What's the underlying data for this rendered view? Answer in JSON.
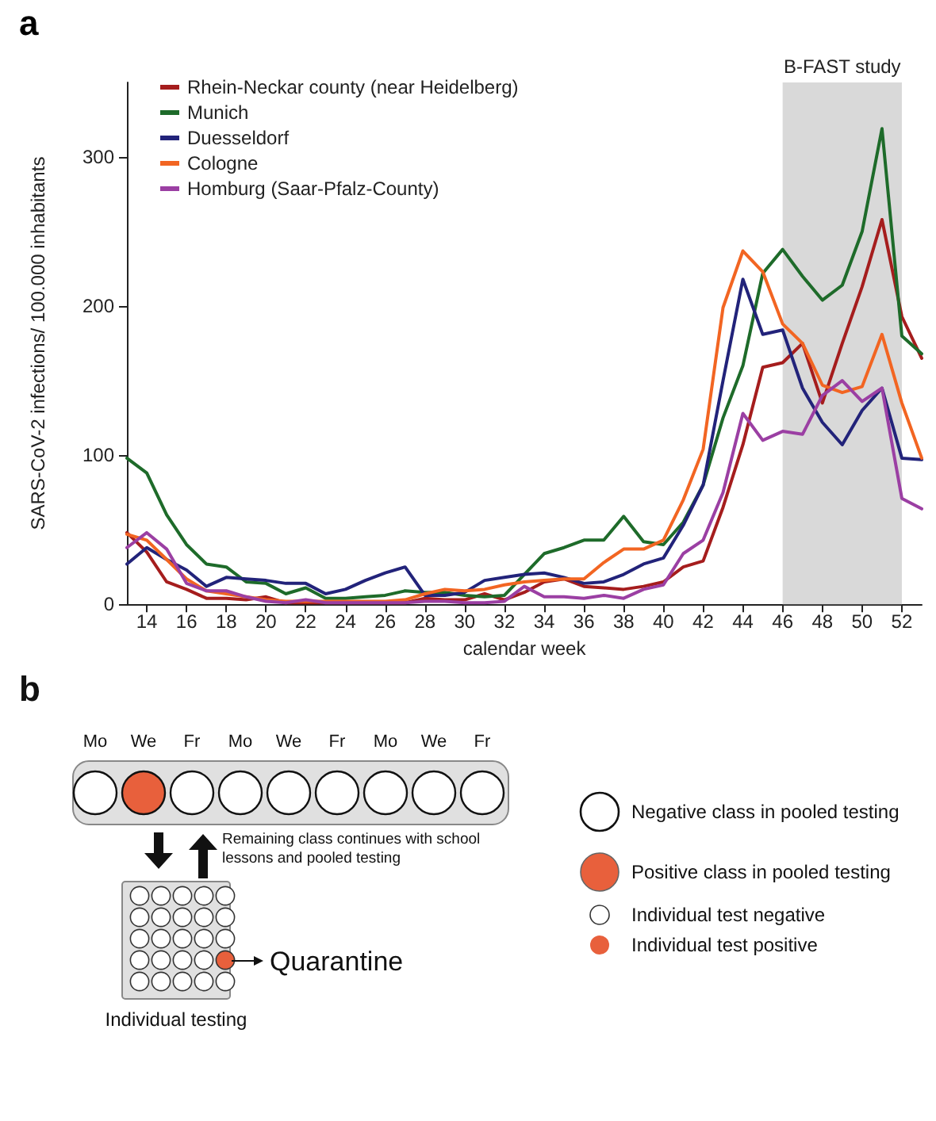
{
  "chart_data": [
    {
      "type": "line",
      "title": "a",
      "xlabel": "calendar week",
      "ylabel": "SARS-CoV-2 infections/ 100.000 inhabitants",
      "x": [
        13,
        14,
        15,
        16,
        17,
        18,
        19,
        20,
        21,
        22,
        23,
        24,
        25,
        26,
        27,
        28,
        29,
        30,
        31,
        32,
        33,
        34,
        35,
        36,
        37,
        38,
        39,
        40,
        41,
        42,
        43,
        44,
        45,
        46,
        47,
        48,
        49,
        50,
        51,
        52,
        53
      ],
      "series": [
        {
          "name": "Rhein-Neckar county (near Heidelberg)",
          "color": "#a51d1d",
          "values": [
            48,
            35,
            15,
            10,
            4,
            4,
            3,
            5,
            1,
            1,
            1,
            1,
            1,
            1,
            1,
            4,
            3,
            3,
            7,
            3,
            8,
            15,
            17,
            12,
            11,
            10,
            12,
            15,
            25,
            29,
            65,
            107,
            159,
            162,
            175,
            135,
            175,
            213,
            258,
            193,
            165
          ]
        },
        {
          "name": "Munich",
          "color": "#1e6b2a",
          "values": [
            98,
            88,
            60,
            40,
            27,
            25,
            15,
            14,
            7,
            11,
            4,
            4,
            5,
            6,
            9,
            8,
            8,
            6,
            5,
            6,
            20,
            34,
            38,
            43,
            43,
            59,
            42,
            40,
            55,
            80,
            125,
            160,
            222,
            238,
            220,
            204,
            214,
            250,
            319,
            180,
            168
          ]
        },
        {
          "name": "Duesseldorf",
          "color": "#22237a",
          "values": [
            27,
            38,
            30,
            23,
            12,
            18,
            17,
            16,
            14,
            14,
            7,
            10,
            16,
            21,
            25,
            6,
            6,
            8,
            16,
            18,
            20,
            21,
            18,
            14,
            15,
            20,
            27,
            31,
            53,
            80,
            150,
            218,
            181,
            184,
            145,
            122,
            107,
            130,
            145,
            98,
            97
          ]
        },
        {
          "name": "Cologne",
          "color": "#f26522",
          "values": [
            47,
            43,
            30,
            17,
            9,
            7,
            5,
            3,
            2,
            2,
            2,
            2,
            2,
            2,
            3,
            7,
            10,
            9,
            10,
            13,
            15,
            16,
            17,
            17,
            28,
            37,
            37,
            43,
            70,
            104,
            199,
            237,
            223,
            188,
            175,
            147,
            142,
            146,
            181,
            135,
            98
          ]
        },
        {
          "name": "Homburg (Saar-Pfalz-County)",
          "color": "#9b3fa3",
          "values": [
            38,
            48,
            37,
            14,
            9,
            9,
            5,
            2,
            1,
            3,
            1,
            1,
            1,
            1,
            1,
            2,
            2,
            1,
            1,
            2,
            12,
            5,
            5,
            4,
            6,
            4,
            10,
            13,
            34,
            43,
            75,
            128,
            110,
            116,
            114,
            140,
            150,
            136,
            145,
            71,
            64
          ]
        }
      ],
      "xlim": [
        13,
        53
      ],
      "ylim": [
        0,
        350
      ],
      "xticks": [
        14,
        16,
        18,
        20,
        22,
        24,
        26,
        28,
        30,
        32,
        34,
        36,
        38,
        40,
        42,
        44,
        46,
        48,
        50,
        52
      ],
      "yticks": [
        0,
        100,
        200,
        300
      ],
      "bands": [
        {
          "axis": "x",
          "from": 46,
          "to": 52,
          "label": "B-FAST study",
          "color": "#d9d9d9"
        }
      ],
      "grid": false,
      "legend": "top left",
      "marker": "none",
      "line_style": "solid"
    },
    {
      "type": "other",
      "title": "b",
      "categories": [
        "Mo",
        "We",
        "Fr",
        "Mo",
        "We",
        "Fr",
        "Mo",
        "We",
        "Fr"
      ],
      "colors": [
        "#ffffff",
        "#e8603c",
        "#ffffff",
        "#ffffff",
        "#ffffff",
        "#ffffff",
        "#ffffff",
        "#ffffff",
        "#ffffff"
      ],
      "annotations": [
        "Remaining class continues with school lessons and pooled testing",
        "Quarantine",
        "Individual testing",
        "Negative class in pooled testing",
        "Positive class in pooled testing",
        "Individual test negative",
        "Individual test positive"
      ]
    }
  ]
}
